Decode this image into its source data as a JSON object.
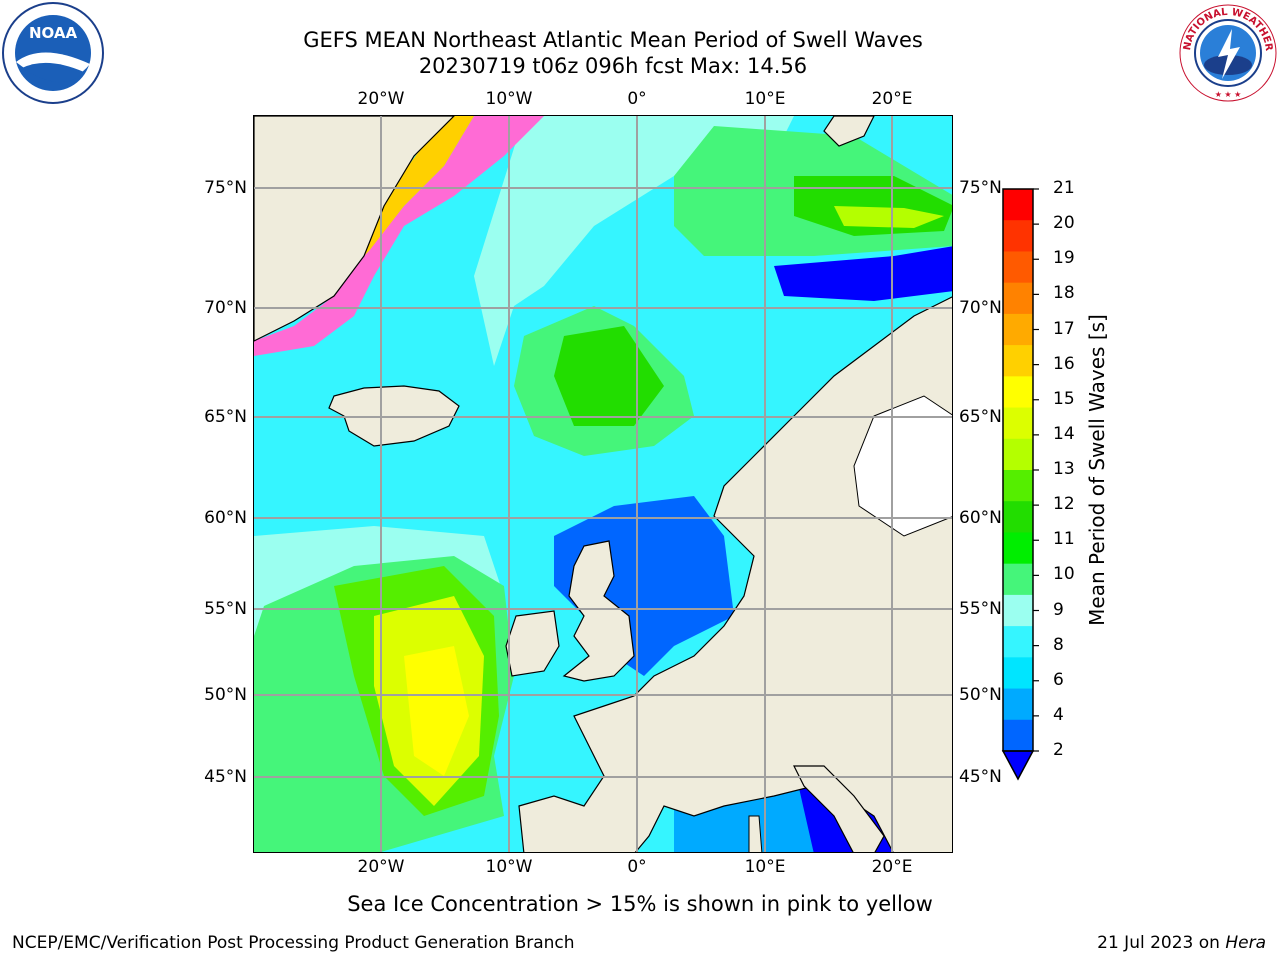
{
  "title": {
    "line1": "GEFS MEAN Northeast Atlantic Mean Period of Swell Waves",
    "line2": "20230719 t06z 096h fcst   Max: 14.56"
  },
  "map": {
    "lon_labels": [
      "20°W",
      "10°W",
      "0°",
      "10°E",
      "20°E"
    ],
    "lat_labels": [
      "75°N",
      "70°N",
      "65°N",
      "60°N",
      "55°N",
      "50°N",
      "45°N"
    ],
    "land_color": "#efecdc",
    "ocean_base_color": "#35f5ff"
  },
  "colorbar": {
    "label": "Mean Period of Swell Waves [s]",
    "ticks": [
      "21",
      "20",
      "19",
      "18",
      "17",
      "16",
      "15",
      "14",
      "13",
      "12",
      "11",
      "10",
      "9",
      "8",
      "6",
      "4",
      "2"
    ],
    "colors_top_to_bottom": [
      "#ff0000",
      "#ff3300",
      "#ff5a00",
      "#ff8200",
      "#ffaa00",
      "#ffd000",
      "#ffff00",
      "#dcff00",
      "#b4ff00",
      "#55ee00",
      "#22dd00",
      "#00ee00",
      "#45f57a",
      "#9bfff0",
      "#35f5ff",
      "#00e5ff",
      "#00aaff",
      "#0066ff"
    ],
    "extend_min_color": "#0000ff"
  },
  "logos": {
    "left": "NOAA",
    "right_ring": "NATIONAL WEATHER SERVICE"
  },
  "note": "Sea Ice Concentration > 15% is shown in pink to yellow",
  "footer": {
    "left": "NCEP/EMC/Verification Post Processing Product Generation Branch",
    "right_prefix": "21 Jul 2023 on ",
    "right_machine": "Hera"
  }
}
